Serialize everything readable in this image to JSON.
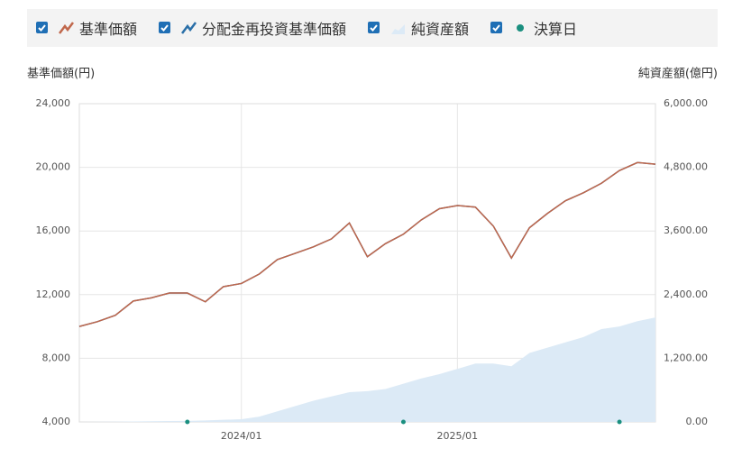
{
  "chart_data": {
    "type": "line",
    "y_label": "基準価額(円)",
    "y2_label": "純資産額(億円)",
    "x": [
      "2023/04",
      "2023/05",
      "2023/06",
      "2023/07",
      "2023/08",
      "2023/09",
      "2023/10",
      "2023/11",
      "2023/12",
      "2024/01",
      "2024/02",
      "2024/03",
      "2024/04",
      "2024/05",
      "2024/06",
      "2024/07",
      "2024/08",
      "2024/09",
      "2024/10",
      "2024/11",
      "2024/12",
      "2025/01",
      "2025/02",
      "2025/03",
      "2025/04",
      "2025/05",
      "2025/06",
      "2025/07",
      "2025/08",
      "2025/09",
      "2025/10",
      "2025/11",
      "2025/12"
    ],
    "xlim": [
      "2023/04",
      "2025/12"
    ],
    "xticks": [
      "2024/01",
      "2025/01"
    ],
    "ylim": [
      4000,
      24000
    ],
    "yticks": [
      {
        "value": 4000,
        "label": "4,000"
      },
      {
        "value": 8000,
        "label": "8,000"
      },
      {
        "value": 12000,
        "label": "12,000"
      },
      {
        "value": 16000,
        "label": "16,000"
      },
      {
        "value": 20000,
        "label": "20,000"
      },
      {
        "value": 24000,
        "label": "24,000"
      }
    ],
    "y2lim": [
      0,
      6000
    ],
    "y2ticks": [
      {
        "value": 0,
        "label": "0.00"
      },
      {
        "value": 1200,
        "label": "1,200.00"
      },
      {
        "value": 2400,
        "label": "2,400.00"
      },
      {
        "value": 3600,
        "label": "3,600.00"
      },
      {
        "value": 4800,
        "label": "4,800.00"
      },
      {
        "value": 6000,
        "label": "6,000.00"
      }
    ],
    "grid": true,
    "series": [
      {
        "name": "基準価額",
        "color": "#c0674b",
        "values": [
          10000,
          10300,
          10700,
          11600,
          11800,
          12100,
          12100,
          11550,
          12500,
          12700,
          13300,
          14200,
          14600,
          15000,
          15500,
          16500,
          14380,
          15200,
          15800,
          16700,
          17400,
          17600,
          17500,
          16300,
          14300,
          16200,
          17100,
          17900,
          18400,
          19000,
          19800,
          20300,
          20200
        ]
      },
      {
        "name": "分配金再投資基準価額",
        "color": "#2a6fa8",
        "values": [
          10000,
          10300,
          10700,
          11600,
          11800,
          12100,
          12100,
          11550,
          12500,
          12700,
          13300,
          14200,
          14600,
          15000,
          15500,
          16500,
          14380,
          15200,
          15800,
          16700,
          17400,
          17600,
          17500,
          16300,
          14300,
          16200,
          17100,
          17900,
          18400,
          19000,
          19800,
          20300,
          20200
        ]
      },
      {
        "name": "純資産額",
        "color": "#dceaf6",
        "axis": "y2",
        "values": [
          0,
          2,
          5,
          8,
          12,
          16,
          20,
          28,
          40,
          50,
          100,
          200,
          300,
          400,
          480,
          560,
          580,
          620,
          720,
          820,
          900,
          1000,
          1100,
          1100,
          1050,
          1300,
          1400,
          1500,
          1600,
          1750,
          1800,
          1900,
          1970
        ]
      }
    ],
    "markers": {
      "name": "決算日",
      "color": "#1a8f7f",
      "x": [
        "2023/10",
        "2024/10",
        "2025/10"
      ]
    }
  }
}
